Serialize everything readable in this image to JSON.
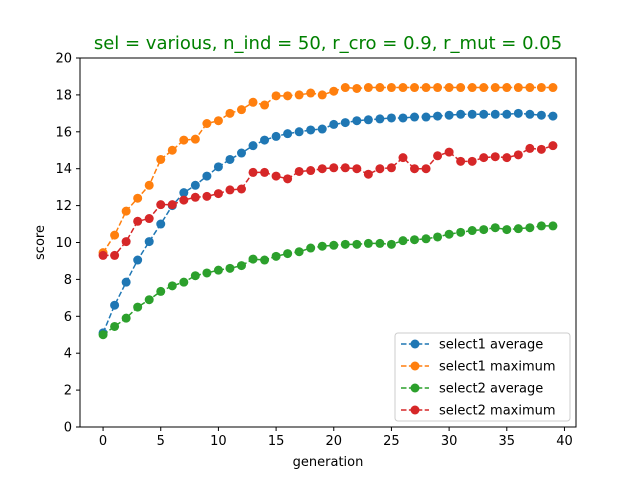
{
  "chart_data": {
    "type": "line",
    "title": "sel = various, n_ind = 50, r_cro = 0.9, r_mut = 0.05",
    "title_color": "#008000",
    "xlabel": "generation",
    "ylabel": "score",
    "xlim": [
      -2,
      41
    ],
    "ylim": [
      0,
      20
    ],
    "xticks": [
      0,
      5,
      10,
      15,
      20,
      25,
      30,
      35,
      40
    ],
    "yticks": [
      0,
      2,
      4,
      6,
      8,
      10,
      12,
      14,
      16,
      18,
      20
    ],
    "grid": false,
    "legend_position": "lower-right",
    "line_style": "dashed",
    "marker": "circle",
    "x": [
      0,
      1,
      2,
      3,
      4,
      5,
      6,
      7,
      8,
      9,
      10,
      11,
      12,
      13,
      14,
      15,
      16,
      17,
      18,
      19,
      20,
      21,
      22,
      23,
      24,
      25,
      26,
      27,
      28,
      29,
      30,
      31,
      32,
      33,
      34,
      35,
      36,
      37,
      38,
      39
    ],
    "series": [
      {
        "name": "select1 average",
        "color": "#1f77b4",
        "values": [
          5.1,
          6.6,
          7.85,
          9.05,
          10.05,
          11.0,
          12.0,
          12.7,
          13.1,
          13.6,
          14.1,
          14.5,
          14.85,
          15.25,
          15.55,
          15.75,
          15.9,
          16.0,
          16.1,
          16.15,
          16.4,
          16.5,
          16.6,
          16.65,
          16.7,
          16.75,
          16.75,
          16.8,
          16.8,
          16.85,
          16.9,
          16.95,
          16.95,
          16.95,
          16.95,
          16.95,
          17.0,
          16.95,
          16.9,
          16.85
        ]
      },
      {
        "name": "select1 maximum",
        "color": "#ff7f0e",
        "values": [
          9.45,
          10.4,
          11.7,
          12.4,
          13.1,
          14.5,
          15.0,
          15.55,
          15.6,
          16.45,
          16.6,
          17.0,
          17.2,
          17.6,
          17.45,
          17.95,
          17.95,
          18.0,
          18.1,
          18.0,
          18.2,
          18.4,
          18.35,
          18.4,
          18.4,
          18.4,
          18.4,
          18.4,
          18.4,
          18.4,
          18.4,
          18.4,
          18.4,
          18.4,
          18.4,
          18.4,
          18.4,
          18.4,
          18.4,
          18.4
        ]
      },
      {
        "name": "select2 average",
        "color": "#2ca02c",
        "values": [
          5.0,
          5.45,
          5.9,
          6.5,
          6.9,
          7.35,
          7.65,
          7.85,
          8.2,
          8.35,
          8.5,
          8.6,
          8.75,
          9.1,
          9.05,
          9.25,
          9.4,
          9.5,
          9.7,
          9.8,
          9.85,
          9.9,
          9.9,
          9.95,
          9.95,
          9.9,
          10.1,
          10.15,
          10.2,
          10.3,
          10.45,
          10.55,
          10.65,
          10.7,
          10.8,
          10.7,
          10.75,
          10.8,
          10.9,
          10.9
        ]
      },
      {
        "name": "select2 maximum",
        "color": "#d62728",
        "values": [
          9.3,
          9.3,
          10.05,
          11.15,
          11.3,
          12.05,
          12.05,
          12.3,
          12.45,
          12.5,
          12.65,
          12.85,
          12.9,
          13.8,
          13.8,
          13.6,
          13.45,
          13.85,
          13.9,
          14.0,
          14.05,
          14.05,
          14.0,
          13.7,
          14.0,
          14.05,
          14.6,
          14.0,
          14.0,
          14.7,
          14.9,
          14.4,
          14.4,
          14.6,
          14.65,
          14.6,
          14.75,
          15.1,
          15.05,
          15.25
        ]
      }
    ]
  }
}
